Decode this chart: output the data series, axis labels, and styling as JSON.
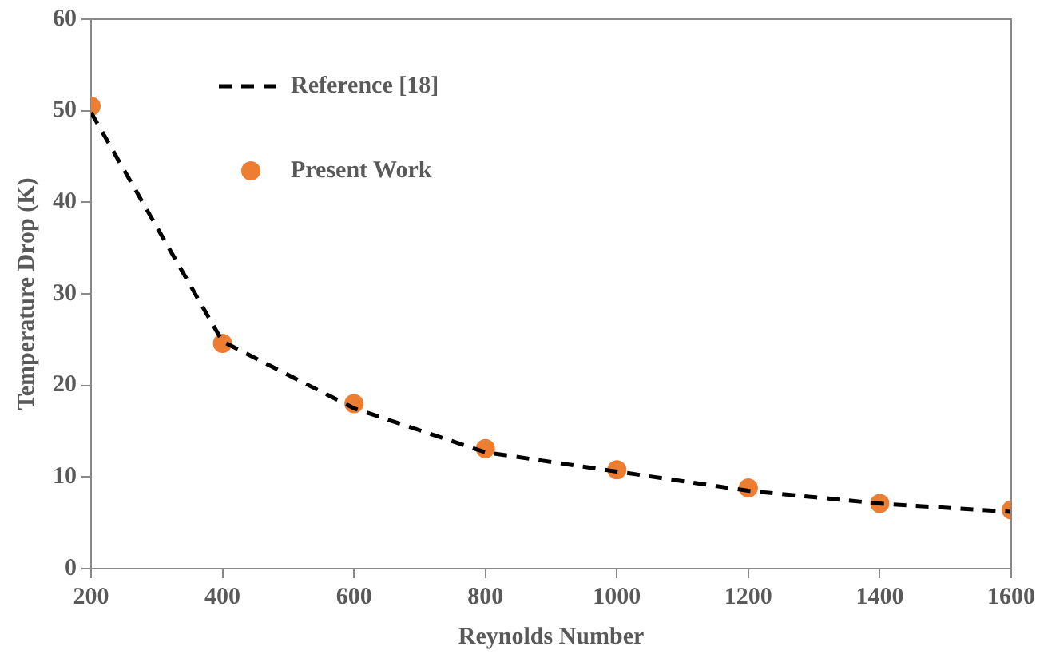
{
  "chart_data": {
    "type": "line",
    "xlabel": "Reynolds Number",
    "ylabel": "Temperature Drop (K)",
    "xlim": [
      200,
      1600
    ],
    "xticks": [
      200,
      400,
      600,
      800,
      1000,
      1200,
      1400,
      1600
    ],
    "ylim": [
      0,
      60
    ],
    "yticks": [
      0,
      10,
      20,
      30,
      40,
      50,
      60
    ],
    "grid": false,
    "legend": "top left",
    "series": [
      {
        "name": "Reference [18]",
        "line_style": "dashed",
        "marker": "none",
        "color": "#000000",
        "x": [
          200,
          400,
          600,
          800,
          1000,
          1200,
          1400,
          1600
        ],
        "values": [
          49.8,
          24.8,
          17.5,
          12.7,
          10.6,
          8.5,
          7.1,
          6.2
        ]
      },
      {
        "name": "Present Work",
        "type": "scatter",
        "marker": "circle",
        "color": "#ed7d31",
        "x": [
          200,
          400,
          600,
          800,
          1000,
          1200,
          1400,
          1600
        ],
        "values": [
          50.5,
          24.6,
          18.0,
          13.1,
          10.8,
          8.8,
          7.1,
          6.4
        ]
      }
    ]
  }
}
